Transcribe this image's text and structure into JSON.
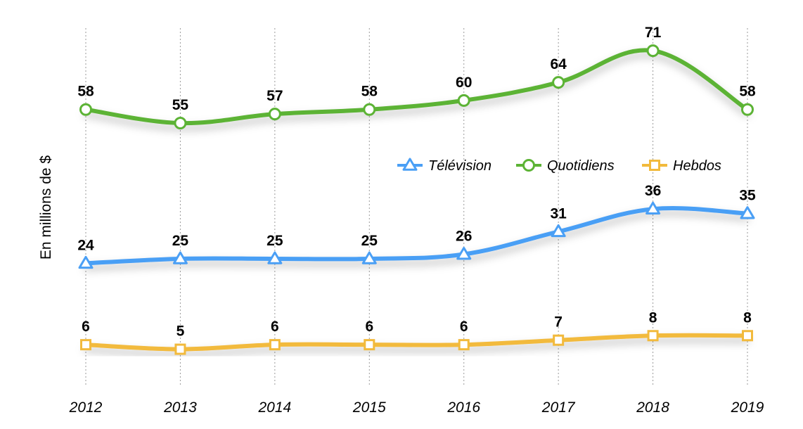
{
  "chart_data": {
    "type": "line",
    "ylabel": "En millions de $",
    "x": [
      "2012",
      "2013",
      "2014",
      "2015",
      "2016",
      "2017",
      "2018",
      "2019"
    ],
    "ylim": [
      -3,
      76
    ],
    "grid": "vertical dotted lines at each year",
    "legend_position": "right, between Quotidiens and Télévision lines",
    "series": [
      {
        "name": "Télévision",
        "color": "#4a9ff5",
        "marker": "triangle",
        "values": [
          24,
          25,
          25,
          25,
          26,
          31,
          36,
          35
        ]
      },
      {
        "name": "Quotidiens",
        "color": "#5cb335",
        "marker": "circle",
        "values": [
          58,
          55,
          57,
          58,
          60,
          64,
          71,
          58
        ]
      },
      {
        "name": "Hebdos",
        "color": "#f2ba3c",
        "marker": "square",
        "values": [
          6,
          5,
          6,
          6,
          6,
          7,
          8,
          8
        ]
      }
    ]
  }
}
